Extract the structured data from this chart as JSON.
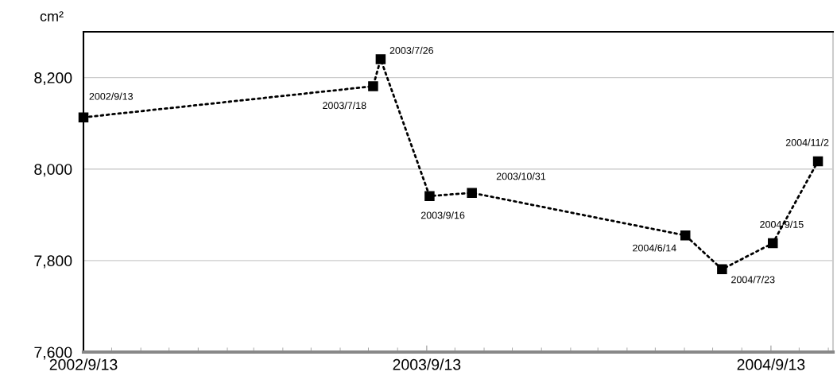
{
  "chart_data": {
    "type": "line",
    "ylabel": "cm²",
    "x": [
      "2002-09-13",
      "2003-07-18",
      "2003-07-26",
      "2003-09-16",
      "2003-10-31",
      "2004-06-14",
      "2004-07-23",
      "2004-09-15",
      "2004-11-02"
    ],
    "series": [
      {
        "color": "#000000",
        "values": [
          8113,
          8181,
          8240,
          7941,
          7948,
          7855,
          7781,
          7838,
          8017
        ]
      }
    ],
    "annotations": [
      {
        "text": "2002/9/13",
        "x": "2002-09-13",
        "y": 8113
      },
      {
        "text": "2003/7/18",
        "x": "2003-07-18",
        "y": 8181
      },
      {
        "text": "2003/7/26",
        "x": "2003-07-26",
        "y": 8240
      },
      {
        "text": "2003/9/16",
        "x": "2003-09-16",
        "y": 7941
      },
      {
        "text": "2003/10/31",
        "x": "2003-10-31",
        "y": 7948
      },
      {
        "text": "2004/6/14",
        "x": "2004-06-14",
        "y": 7855
      },
      {
        "text": "2004/7/23",
        "x": "2004-07-23",
        "y": 7781
      },
      {
        "text": "2004/9/15",
        "x": "2004-09-15",
        "y": 7838
      },
      {
        "text": "2004/11/2",
        "x": "2004-11-02",
        "y": 8017
      }
    ],
    "xlim": [
      "2002-09-13",
      "2004-11-18"
    ],
    "xticks": [
      {
        "value": "2002-09-13",
        "label": "2002/9/13"
      },
      {
        "value": "2003-09-13",
        "label": "2003/9/13"
      },
      {
        "value": "2004-09-13",
        "label": "2004/9/13"
      }
    ],
    "ylim": [
      7600,
      8300
    ],
    "yticks": [
      {
        "value": 7600,
        "label": "7,600"
      },
      {
        "value": 7800,
        "label": "7,800"
      },
      {
        "value": 8000,
        "label": "8,000"
      },
      {
        "value": 8200,
        "label": "8,200"
      }
    ],
    "grid": "y",
    "marker": "square",
    "line_style": "dotted"
  }
}
